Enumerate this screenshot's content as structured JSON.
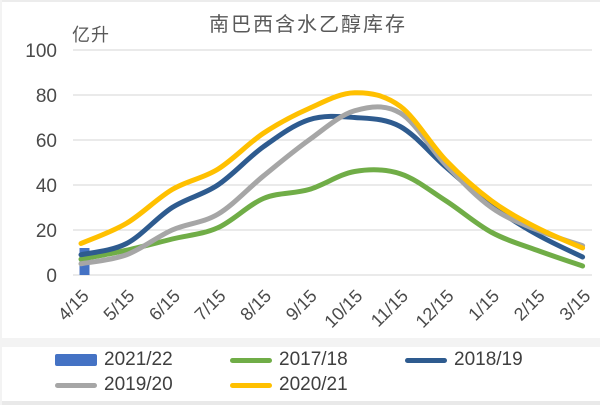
{
  "page": {
    "background": "#ffffff"
  },
  "chart_data": {
    "type": "combo",
    "title": "南巴西含水乙醇库存",
    "unit_label": "亿升",
    "categories": [
      "4/15",
      "5/15",
      "6/15",
      "7/15",
      "8/15",
      "9/15",
      "10/15",
      "11/15",
      "12/15",
      "1/15",
      "2/15",
      "3/15"
    ],
    "y_axis": {
      "min": 0,
      "max": 100,
      "step": 20,
      "ticks": [
        0,
        20,
        40,
        60,
        80,
        100
      ]
    },
    "grid": true,
    "legend_position": "bottom",
    "colors": {
      "grid": "#d6d6d6",
      "tick_text": "#4a4a4a",
      "title_text": "#595959"
    },
    "series": [
      {
        "name": "2021/22",
        "type": "bar",
        "color": "#4472C4",
        "values": [
          12
        ]
      },
      {
        "name": "2017/18",
        "type": "line",
        "color": "#70AD47",
        "values": [
          7,
          11,
          16,
          21,
          34,
          38,
          46,
          45,
          33,
          19,
          11,
          4
        ]
      },
      {
        "name": "2018/19",
        "type": "line",
        "color": "#2E5B8F",
        "values": [
          9,
          14,
          30,
          40,
          57,
          69,
          70,
          66,
          48,
          31,
          18,
          8
        ]
      },
      {
        "name": "2019/20",
        "type": "line",
        "color": "#A6A6A6",
        "values": [
          5,
          9,
          20,
          27,
          44,
          60,
          73,
          72,
          49,
          30,
          20,
          13
        ]
      },
      {
        "name": "2020/21",
        "type": "line",
        "color": "#FFC000",
        "values": [
          14,
          23,
          38,
          47,
          63,
          74,
          81,
          75,
          51,
          33,
          21,
          12
        ]
      }
    ]
  }
}
